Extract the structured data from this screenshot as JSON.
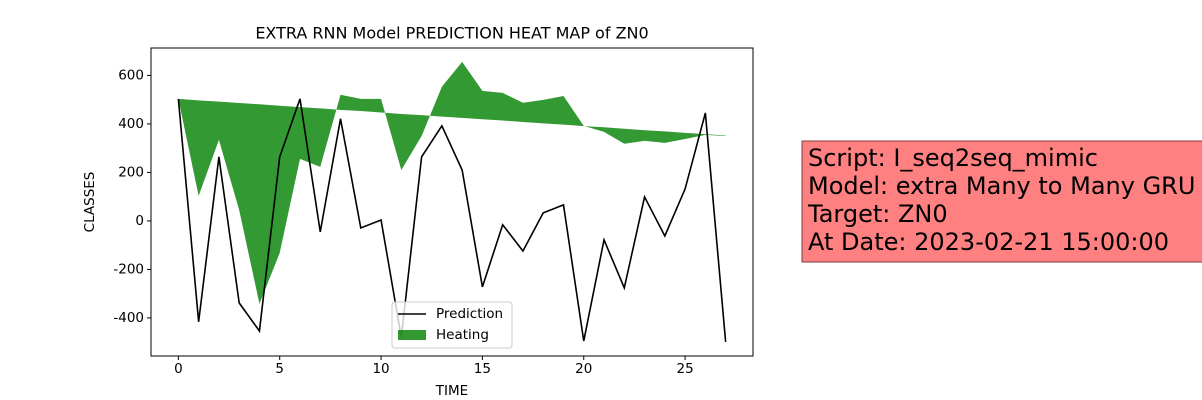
{
  "chart_data": {
    "type": "line",
    "title": "EXTRA RNN Model PREDICTION HEAT MAP of ZN0",
    "xlabel": "TIME",
    "ylabel": "CLASSES",
    "x": [
      0,
      1,
      2,
      3,
      4,
      5,
      6,
      7,
      8,
      9,
      10,
      11,
      12,
      13,
      14,
      15,
      16,
      17,
      18,
      19,
      20,
      21,
      22,
      23,
      24,
      25,
      26,
      27
    ],
    "series": [
      {
        "name": "Prediction",
        "color": "#000000",
        "type": "line",
        "values": [
          503,
          -416,
          264,
          -338,
          -454,
          264,
          503,
          -45,
          421,
          -29,
          4,
          -480,
          264,
          392,
          210,
          -272,
          -16,
          -124,
          33,
          66,
          -495,
          -78,
          -276,
          99,
          -62,
          132,
          445,
          -499
        ]
      },
      {
        "name": "Heating",
        "color": "#008000",
        "type": "area",
        "values": [
          503,
          103,
          334,
          45,
          -342,
          -132,
          256,
          223,
          520,
          503,
          503,
          210,
          350,
          553,
          656,
          536,
          528,
          487,
          499,
          515,
          392,
          367,
          318,
          330,
          322,
          338,
          355,
          350
        ],
        "base": [
          503,
          497,
          492,
          486,
          481,
          475,
          469,
          464,
          458,
          453,
          447,
          441,
          436,
          430,
          425,
          419,
          414,
          408,
          402,
          397,
          391,
          386,
          380,
          374,
          369,
          363,
          358,
          352
        ]
      }
    ],
    "xlim": [
      -1.35,
      28.35
    ],
    "ylim": [
      -557,
      713
    ],
    "xticks": [
      0,
      5,
      10,
      15,
      20,
      25
    ],
    "yticks": [
      -400,
      -200,
      0,
      200,
      400,
      600
    ],
    "legend": "lower center",
    "annotation": [
      "Script: I_seq2seq_mimic",
      "Model: extra Many to Many GRU",
      "Target: ZN0",
      "At Date: 2023-02-21 15:00:00"
    ]
  }
}
